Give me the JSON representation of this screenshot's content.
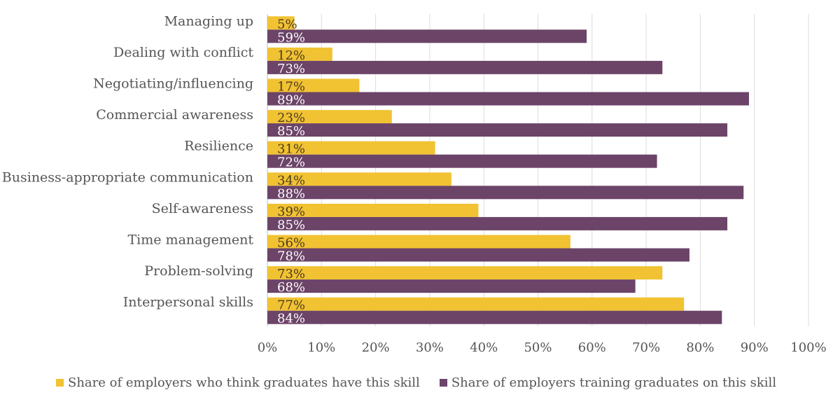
{
  "chart_data": {
    "type": "bar",
    "orientation": "horizontal",
    "categories": [
      "Managing up",
      "Dealing with conflict",
      "Negotiating/influencing",
      "Commercial awareness",
      "Resilience",
      "Business-appropriate communication",
      "Self-awareness",
      "Time management",
      "Problem-solving",
      "Interpersonal skills"
    ],
    "series": [
      {
        "name": "Share of employers who think graduates have this skill",
        "color": "#f1c232",
        "values": [
          5,
          12,
          17,
          23,
          31,
          34,
          39,
          56,
          73,
          77
        ],
        "labels": [
          "5%",
          "12%",
          "17%",
          "23%",
          "31%",
          "34%",
          "39%",
          "56%",
          "73%",
          "77%"
        ]
      },
      {
        "name": "Share of employers training graduates on this skill",
        "color": "#6b4468",
        "values": [
          59,
          73,
          89,
          85,
          72,
          88,
          85,
          78,
          68,
          84
        ],
        "labels": [
          "59%",
          "73%",
          "89%",
          "85%",
          "72%",
          "88%",
          "85%",
          "78%",
          "68%",
          "84%"
        ]
      }
    ],
    "xlim": [
      0,
      100
    ],
    "xticks": [
      "0%",
      "10%",
      "20%",
      "30%",
      "40%",
      "50%",
      "60%",
      "70%",
      "80%",
      "90%",
      "100%"
    ],
    "grid": "vertical",
    "legend_position": "bottom"
  }
}
